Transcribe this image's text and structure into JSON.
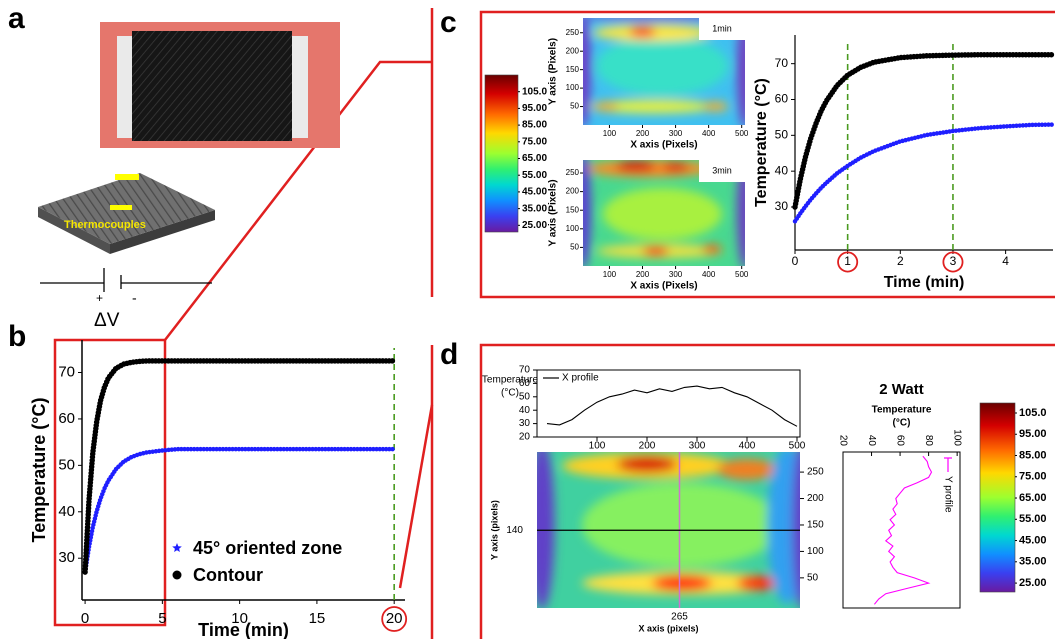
{
  "panel_labels": [
    "a",
    "b",
    "c",
    "d"
  ],
  "schematic": {
    "sensor_label": "Thermocouples",
    "positive": "+",
    "negative": "-",
    "voltage": "ΔV"
  },
  "chart_data": [
    {
      "type": "line",
      "ylabel": "Temperature (°C)",
      "xlabel": "Time (min)",
      "x": [
        0,
        0.25,
        0.5,
        0.75,
        1,
        1.25,
        1.5,
        2,
        2.5,
        3,
        3.5,
        4,
        5,
        6,
        8,
        10,
        12,
        14,
        16,
        18,
        20
      ],
      "series": [
        {
          "name": "45° oriented zone",
          "color": "#1f1fff",
          "marker": "star",
          "values": [
            27,
            32.4,
            36.7,
            40.1,
            42.8,
            45,
            46.7,
            49.2,
            50.8,
            51.8,
            52.4,
            52.8,
            53.2,
            53.5,
            53.5,
            53.5,
            53.5,
            53.5,
            53.5,
            53.5,
            53.5
          ]
        },
        {
          "name": "Contour",
          "color": "#000000",
          "marker": "circle",
          "values": [
            27,
            42.5,
            52.7,
            59.4,
            63.9,
            66.8,
            68.8,
            70.9,
            71.8,
            72.2,
            72.4,
            72.5,
            72.5,
            72.5,
            72.5,
            72.5,
            72.5,
            72.5,
            72.5,
            72.5,
            72.5
          ]
        }
      ],
      "xlim": [
        -0.2,
        20.7
      ],
      "ylim": [
        21,
        77
      ],
      "xticks": [
        0,
        5,
        10,
        15,
        20
      ],
      "yticks": [
        30,
        40,
        50,
        60,
        70
      ],
      "reference_lines": [
        20
      ],
      "legend": "lower center"
    },
    {
      "type": "line",
      "ylabel": "Temperature (°C)",
      "xlabel": "Time (min)",
      "x": [
        0,
        0.1,
        0.2,
        0.3,
        0.4,
        0.5,
        0.6,
        0.8,
        1,
        1.25,
        1.5,
        2,
        2.5,
        3,
        3.5,
        4,
        4.5,
        4.9
      ],
      "series": [
        {
          "color": "#000000",
          "marker": "circle",
          "values": [
            30,
            37.7,
            44,
            49.2,
            53.4,
            56.9,
            59.7,
            63.9,
            66.8,
            69,
            70.4,
            71.7,
            72.2,
            72.4,
            72.5,
            72.5,
            72.5,
            72.5
          ]
        },
        {
          "color": "#1f1fff",
          "marker": "star",
          "values": [
            26,
            28.2,
            30.2,
            32.1,
            33.8,
            35.4,
            36.8,
            39.4,
            41.5,
            43.8,
            45.6,
            48.3,
            50.1,
            51.2,
            52,
            52.5,
            52.9,
            53
          ]
        }
      ],
      "xlim": [
        0,
        4.9
      ],
      "ylim": [
        18,
        78
      ],
      "xticks": [
        0,
        1,
        2,
        3,
        4
      ],
      "yticks": [
        30,
        40,
        50,
        60,
        70
      ],
      "reference_lines": [
        1,
        3
      ]
    },
    {
      "type": "line",
      "ylabel": [
        "Temperature",
        "(°C)"
      ],
      "x": [
        0,
        25,
        50,
        75,
        100,
        125,
        150,
        175,
        200,
        225,
        250,
        275,
        300,
        325,
        350,
        375,
        400,
        425,
        450,
        475,
        500
      ],
      "series": [
        {
          "name": "X profile",
          "color": "#000000",
          "values": [
            30,
            29,
            33,
            40,
            46,
            50,
            52,
            55,
            53,
            56,
            54,
            57,
            58,
            56,
            57,
            53,
            50,
            45,
            40,
            33,
            28
          ]
        }
      ],
      "xlim": [
        -20,
        506
      ],
      "ylim": [
        20,
        70
      ],
      "xticks": [
        100,
        200,
        300,
        400,
        500
      ],
      "yticks": [
        20,
        30,
        40,
        50,
        60,
        70
      ],
      "legend": "upper left"
    },
    {
      "type": "line",
      "orientation": "vertical",
      "title": "2 Watt",
      "xlabel": [
        "Temperature",
        "(°C)"
      ],
      "y": [
        0,
        10,
        20,
        30,
        40,
        50,
        60,
        70,
        80,
        90,
        100,
        110,
        120,
        130,
        140,
        150,
        160,
        170,
        180,
        190,
        200,
        210,
        220,
        230,
        240,
        250,
        260,
        270,
        280
      ],
      "series": [
        {
          "name": "Y profile",
          "color": "#ff00ff",
          "values": [
            42,
            45,
            50,
            65,
            80,
            70,
            58,
            55,
            53,
            56,
            52,
            55,
            50,
            54,
            52,
            56,
            53,
            57,
            55,
            58,
            57,
            60,
            63,
            72,
            80,
            82,
            80,
            79,
            76
          ]
        }
      ],
      "xlim": [
        20,
        102
      ],
      "ylim": [
        -7,
        288
      ],
      "xticks": [
        20,
        40,
        60,
        80,
        100
      ],
      "legend": "upper right"
    }
  ],
  "heatmaps": [
    {
      "title": "1min",
      "xlabel": "X axis (Pixels)",
      "ylabel": "Y axis (Pixels)",
      "xlim": [
        20,
        510
      ],
      "ylim": [
        0,
        290
      ],
      "xticks": [
        100,
        200,
        300,
        400,
        500
      ],
      "yticks": [
        50,
        100,
        150,
        200,
        250
      ]
    },
    {
      "title": "3min",
      "xlabel": "X axis (Pixels)",
      "ylabel": "Y axis (Pixels)",
      "xlim": [
        20,
        510
      ],
      "ylim": [
        0,
        285
      ],
      "xticks": [
        100,
        200,
        300,
        400,
        500
      ],
      "yticks": [
        50,
        100,
        150,
        200,
        250
      ]
    },
    {
      "xlabel": "X axis (pixels)",
      "ylabel": "Y axis (pixels)",
      "xlim": [
        -20,
        506
      ],
      "ylim": [
        -7,
        288
      ],
      "yticks": [
        50,
        100,
        150,
        200,
        250
      ],
      "cursor_x": 265,
      "cursor_y": 140
    }
  ],
  "colorbars": [
    {
      "lim": [
        21,
        115
      ],
      "ticks": [
        {
          "value": 105,
          "label": "105.0"
        },
        {
          "value": 95,
          "label": "95.00"
        },
        {
          "value": 85,
          "label": "85.00"
        },
        {
          "value": 75,
          "label": "75.00"
        },
        {
          "value": 65,
          "label": "65.00"
        },
        {
          "value": 55,
          "label": "55.00"
        },
        {
          "value": 45,
          "label": "45.00"
        },
        {
          "value": 35,
          "label": "35.00"
        },
        {
          "value": 25,
          "label": "25.00"
        }
      ]
    },
    {
      "lim": [
        20.8,
        109.7
      ],
      "ticks": [
        {
          "value": 105,
          "label": "105.0"
        },
        {
          "value": 95,
          "label": "95.00"
        },
        {
          "value": 85,
          "label": "85.00"
        },
        {
          "value": 75,
          "label": "75.00"
        },
        {
          "value": 65,
          "label": "65.00"
        },
        {
          "value": 55,
          "label": "55.00"
        },
        {
          "value": 45,
          "label": "45.00"
        },
        {
          "value": 35,
          "label": "35.00"
        },
        {
          "value": 25,
          "label": "25.00"
        }
      ]
    }
  ]
}
